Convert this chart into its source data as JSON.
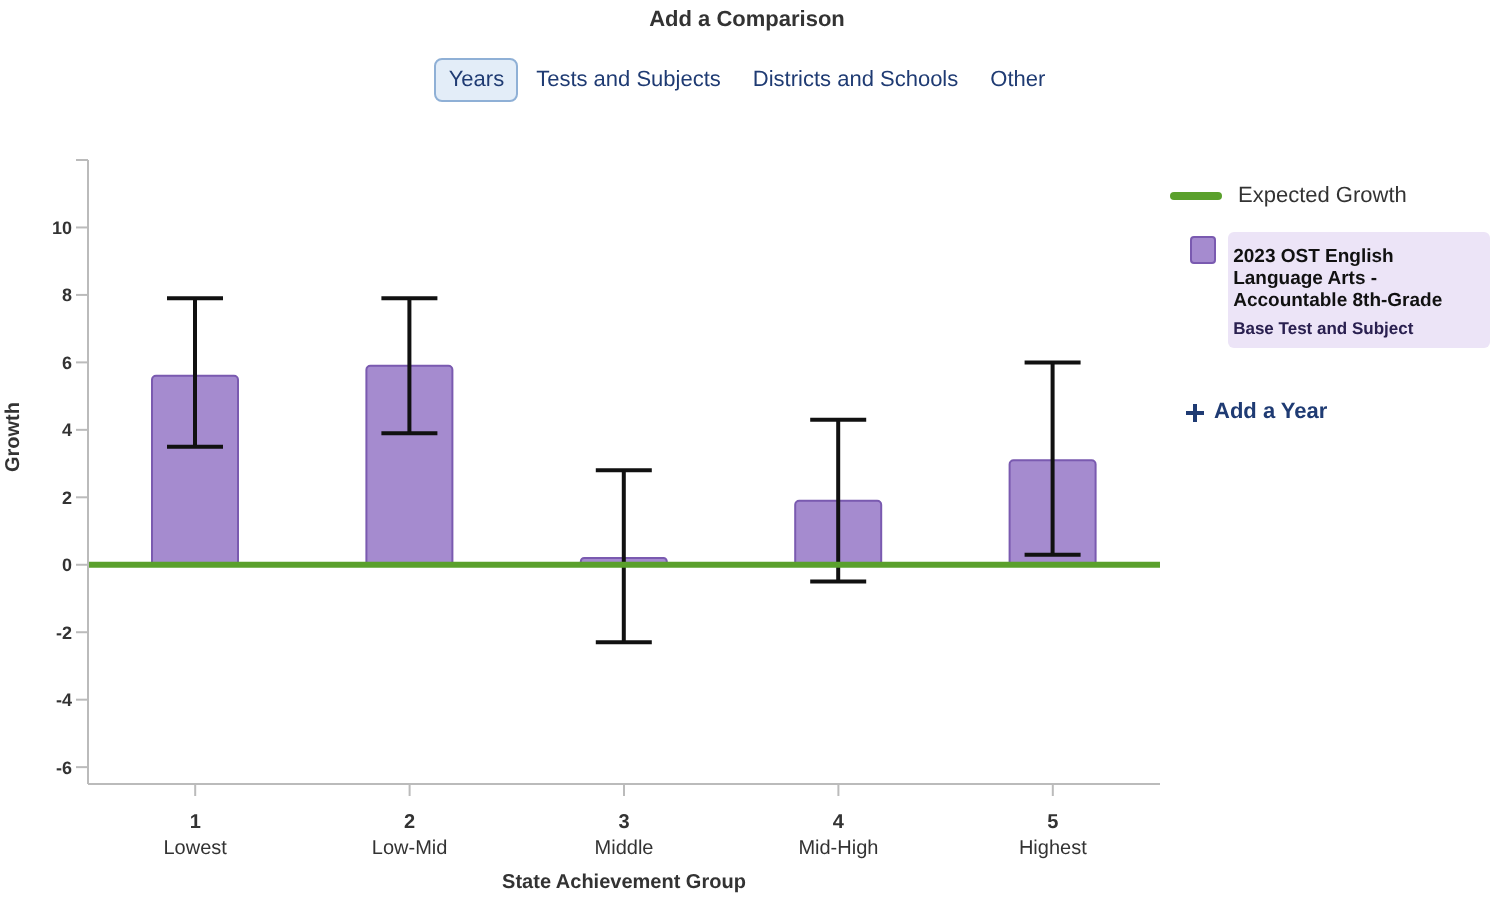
{
  "chart_data": {
    "type": "bar",
    "title": "Add a Comparison",
    "xlabel": "State Achievement Group",
    "ylabel": "Growth",
    "categories": [
      "1\nLowest",
      "2\nLow-Mid",
      "3\nMiddle",
      "4\nMid-High",
      "5\nHighest"
    ],
    "series": [
      {
        "name": "2023 OST English Language Arts - Accountable 8th-Grade",
        "color": "#a58bcf",
        "values": [
          5.6,
          5.9,
          0.2,
          1.9,
          3.1
        ],
        "errors": [
          [
            3.5,
            7.9
          ],
          [
            3.9,
            7.9
          ],
          [
            -2.3,
            2.8
          ],
          [
            -0.5,
            4.3
          ],
          [
            0.3,
            6.0
          ]
        ]
      }
    ],
    "ylim": [
      -6.5,
      12
    ],
    "yticks": [
      -6,
      -4,
      -2,
      0,
      2,
      4,
      6,
      8,
      10,
      {
        "value": 12,
        "label": null
      }
    ],
    "ref_lines": [
      {
        "axis": "y",
        "value": 0,
        "label": "Expected Growth",
        "color": "#5aa02c"
      }
    ],
    "legend": "right",
    "grid": false,
    "annotations": [
      "Years",
      "Tests and Subjects",
      "Districts and Schools",
      "Other",
      "Base Test and Subject",
      "Add a Year"
    ]
  }
}
